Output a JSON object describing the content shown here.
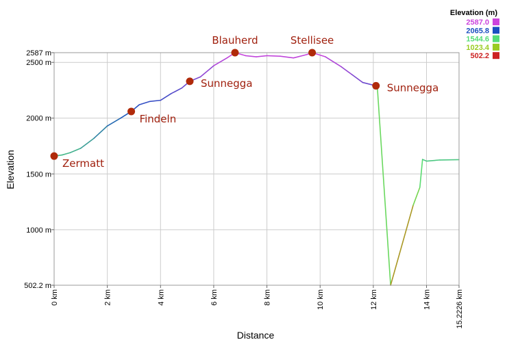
{
  "chart_data": {
    "type": "line",
    "xlabel": "Distance",
    "ylabel": "Elevation",
    "xlim": [
      0,
      15.2226
    ],
    "ylim": [
      502.2,
      2587
    ],
    "x_ticks": [
      {
        "value": 0,
        "label": "0 km"
      },
      {
        "value": 2,
        "label": "2 km"
      },
      {
        "value": 4,
        "label": "4 km"
      },
      {
        "value": 6,
        "label": "6 km"
      },
      {
        "value": 8,
        "label": "8 km"
      },
      {
        "value": 10,
        "label": "10 km"
      },
      {
        "value": 12,
        "label": "12 km"
      },
      {
        "value": 14,
        "label": "14 km"
      },
      {
        "value": 15.2226,
        "label": "15.2226 km"
      }
    ],
    "y_ticks": [
      {
        "value": 502.2,
        "label": "502.2 m"
      },
      {
        "value": 1000,
        "label": "1000 m"
      },
      {
        "value": 1500,
        "label": "1500 m"
      },
      {
        "value": 2000,
        "label": "2000 m"
      },
      {
        "value": 2500,
        "label": "2500 m"
      },
      {
        "value": 2587,
        "label": "2587 m"
      }
    ],
    "grid": true,
    "series": [
      {
        "x": [
          0,
          0.3,
          0.6,
          1.0,
          1.5,
          2.0,
          2.5,
          2.9,
          3.2,
          3.6,
          4.0,
          4.4,
          4.8,
          5.1,
          5.5,
          6.0,
          6.5,
          6.8,
          7.2,
          7.6,
          8.0,
          8.5,
          9.0,
          9.5,
          9.7,
          10.2,
          10.8,
          11.2,
          11.6,
          12.1,
          12.15,
          12.65,
          13.5,
          13.75,
          13.85,
          14.0,
          14.5,
          15.2226
        ],
        "y": [
          1660,
          1670,
          1690,
          1730,
          1820,
          1930,
          2000,
          2060,
          2120,
          2150,
          2160,
          2220,
          2270,
          2330,
          2370,
          2470,
          2540,
          2587,
          2560,
          2550,
          2560,
          2555,
          2540,
          2570,
          2587,
          2550,
          2460,
          2390,
          2320,
          2290,
          2280,
          502.2,
          1220,
          1380,
          1630,
          1615,
          1625,
          1628
        ]
      }
    ],
    "waypoints": [
      {
        "name": "Zermatt",
        "x": 0,
        "y": 1660,
        "label_side": "right-below"
      },
      {
        "name": "Findeln",
        "x": 2.9,
        "y": 2060,
        "label_side": "right-below"
      },
      {
        "name": "Sunnegga",
        "x": 5.1,
        "y": 2330,
        "label_side": "right"
      },
      {
        "name": "Blauherd",
        "x": 6.8,
        "y": 2587,
        "label_side": "above"
      },
      {
        "name": "Stellisee",
        "x": 9.7,
        "y": 2587,
        "label_side": "above"
      },
      {
        "name": "Sunnegga",
        "x": 12.1,
        "y": 2290,
        "label_side": "right"
      }
    ],
    "legend": {
      "title": "Elevation (m)",
      "position": "top-right",
      "entries": [
        {
          "label": "2587.0",
          "color": "#cc44dd"
        },
        {
          "label": "2065.8",
          "color": "#1a4fc0"
        },
        {
          "label": "1544.6",
          "color": "#55dd77"
        },
        {
          "label": "1023.4",
          "color": "#99cc22"
        },
        {
          "label": "502.2",
          "color": "#cc2222"
        }
      ]
    },
    "colors": {
      "waypoint_marker": "#b02a0a",
      "waypoint_label": "#a0200e",
      "grid": "#cccccc"
    }
  }
}
